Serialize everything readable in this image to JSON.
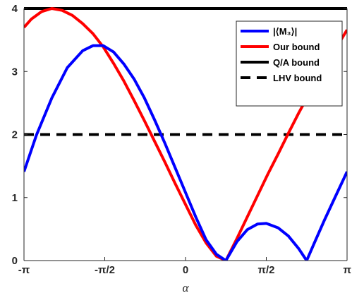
{
  "chart_data": {
    "type": "line",
    "xlabel": "α",
    "ylabel": "",
    "xlim": [
      -3.14159,
      3.14159
    ],
    "ylim": [
      0,
      4
    ],
    "x_ticks": [
      {
        "value": -3.14159,
        "label": "-π"
      },
      {
        "value": -1.5708,
        "label": "-π/2"
      },
      {
        "value": 0,
        "label": "0"
      },
      {
        "value": 1.5708,
        "label": "π/2"
      },
      {
        "value": 3.14159,
        "label": "π"
      }
    ],
    "y_ticks": [
      {
        "value": 0,
        "label": "0"
      },
      {
        "value": 1,
        "label": "1"
      },
      {
        "value": 2,
        "label": "2"
      },
      {
        "value": 3,
        "label": "3"
      },
      {
        "value": 4,
        "label": "4"
      }
    ],
    "grid": false,
    "legend_position": "top-right",
    "series": [
      {
        "name": "|⟨M₃⟩|",
        "color": "#0000ff",
        "style": "solid",
        "x": [
          -3.14159,
          -2.9,
          -2.6,
          -2.3,
          -2.0,
          -1.8,
          -1.6,
          -1.4,
          -1.2,
          -1.0,
          -0.8,
          -0.6,
          -0.4,
          -0.2,
          0.0,
          0.2,
          0.4,
          0.6,
          0.785,
          1.0,
          1.2,
          1.4,
          1.571,
          1.8,
          2.0,
          2.2,
          2.356,
          2.5,
          2.7,
          2.9,
          3.14159
        ],
        "y": [
          1.41,
          1.99,
          2.58,
          3.06,
          3.33,
          3.41,
          3.41,
          3.31,
          3.12,
          2.88,
          2.58,
          2.23,
          1.86,
          1.47,
          1.08,
          0.69,
          0.33,
          0.1,
          0.0,
          0.3,
          0.49,
          0.58,
          0.59,
          0.52,
          0.39,
          0.19,
          0.0,
          0.27,
          0.64,
          0.99,
          1.41
        ]
      },
      {
        "name": "Our bound",
        "color": "#ff0000",
        "style": "solid",
        "x": [
          -3.14159,
          -3.0,
          -2.8,
          -2.6,
          -2.4,
          -2.2,
          -2.0,
          -1.8,
          -1.6,
          -1.4,
          -1.2,
          -1.0,
          -0.8,
          -0.6,
          -0.4,
          -0.2,
          0.0,
          0.2,
          0.4,
          0.6,
          0.785,
          1.0,
          1.2,
          1.4,
          1.6,
          1.8,
          2.0,
          2.2,
          2.4,
          2.6,
          2.8,
          3.0,
          3.14159
        ],
        "y": [
          3.7,
          3.83,
          3.95,
          4.0,
          3.97,
          3.89,
          3.76,
          3.6,
          3.39,
          3.13,
          2.85,
          2.54,
          2.22,
          1.89,
          1.56,
          1.22,
          0.89,
          0.56,
          0.28,
          0.07,
          0.0,
          0.35,
          0.69,
          1.03,
          1.37,
          1.69,
          2.02,
          2.34,
          2.64,
          2.93,
          3.21,
          3.47,
          3.66
        ]
      },
      {
        "name": "Q/A bound",
        "color": "#000000",
        "style": "solid",
        "x": [
          -3.14159,
          3.14159
        ],
        "y": [
          4,
          4
        ]
      },
      {
        "name": "LHV bound",
        "color": "#000000",
        "style": "dashed",
        "x": [
          -3.14159,
          3.14159
        ],
        "y": [
          2,
          2
        ]
      }
    ]
  }
}
